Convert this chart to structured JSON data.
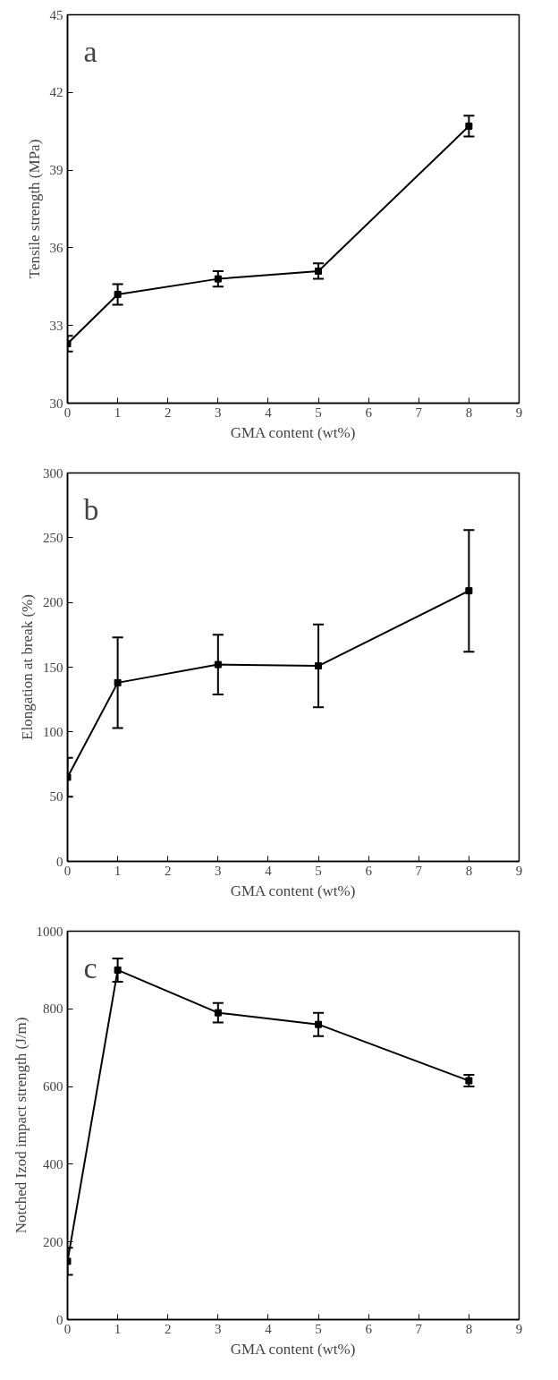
{
  "chart_data": [
    {
      "type": "line",
      "xlabel": "GMA content (wt%)",
      "ylabel": "Tensile strength (MPa)",
      "annotations": [
        "a"
      ],
      "x": [
        0,
        1,
        3,
        5,
        8
      ],
      "series": [
        {
          "color": "#000000",
          "values": [
            32.3,
            34.2,
            34.8,
            35.1,
            40.7
          ],
          "errors": [
            0.3,
            0.4,
            0.3,
            0.3,
            0.4
          ]
        }
      ],
      "xlim": [
        0,
        9
      ],
      "xticks": [
        0,
        1,
        2,
        3,
        4,
        5,
        6,
        7,
        8,
        9
      ],
      "ylim": [
        30,
        45
      ],
      "yticks": [
        30,
        33,
        36,
        39,
        42,
        45
      ],
      "grid": false,
      "marker": "square",
      "line_style": "solid"
    },
    {
      "type": "line",
      "xlabel": "GMA content (wt%)",
      "ylabel": "Elongation at break (%)",
      "annotations": [
        "b"
      ],
      "x": [
        0,
        1,
        3,
        5,
        8
      ],
      "series": [
        {
          "color": "#000000",
          "values": [
            65,
            138,
            152,
            151,
            209
          ],
          "errors": [
            15,
            35,
            23,
            32,
            47
          ]
        }
      ],
      "xlim": [
        0,
        9
      ],
      "xticks": [
        0,
        1,
        2,
        3,
        4,
        5,
        6,
        7,
        8,
        9
      ],
      "ylim": [
        0,
        300
      ],
      "yticks": [
        0,
        50,
        100,
        150,
        200,
        250,
        300
      ],
      "grid": false,
      "marker": "square",
      "line_style": "solid"
    },
    {
      "type": "line",
      "xlabel": "GMA content (wt%)",
      "ylabel": "Notched Izod impact strength (J/m)",
      "annotations": [
        "c"
      ],
      "x": [
        0,
        1,
        3,
        5,
        8
      ],
      "series": [
        {
          "color": "#000000",
          "values": [
            150,
            900,
            790,
            760,
            615
          ],
          "errors": [
            35,
            30,
            25,
            30,
            15
          ]
        }
      ],
      "xlim": [
        0,
        9
      ],
      "xticks": [
        0,
        1,
        2,
        3,
        4,
        5,
        6,
        7,
        8,
        9
      ],
      "ylim": [
        0,
        1000
      ],
      "yticks": [
        0,
        200,
        400,
        600,
        800,
        1000
      ],
      "grid": false,
      "marker": "square",
      "line_style": "solid"
    }
  ]
}
